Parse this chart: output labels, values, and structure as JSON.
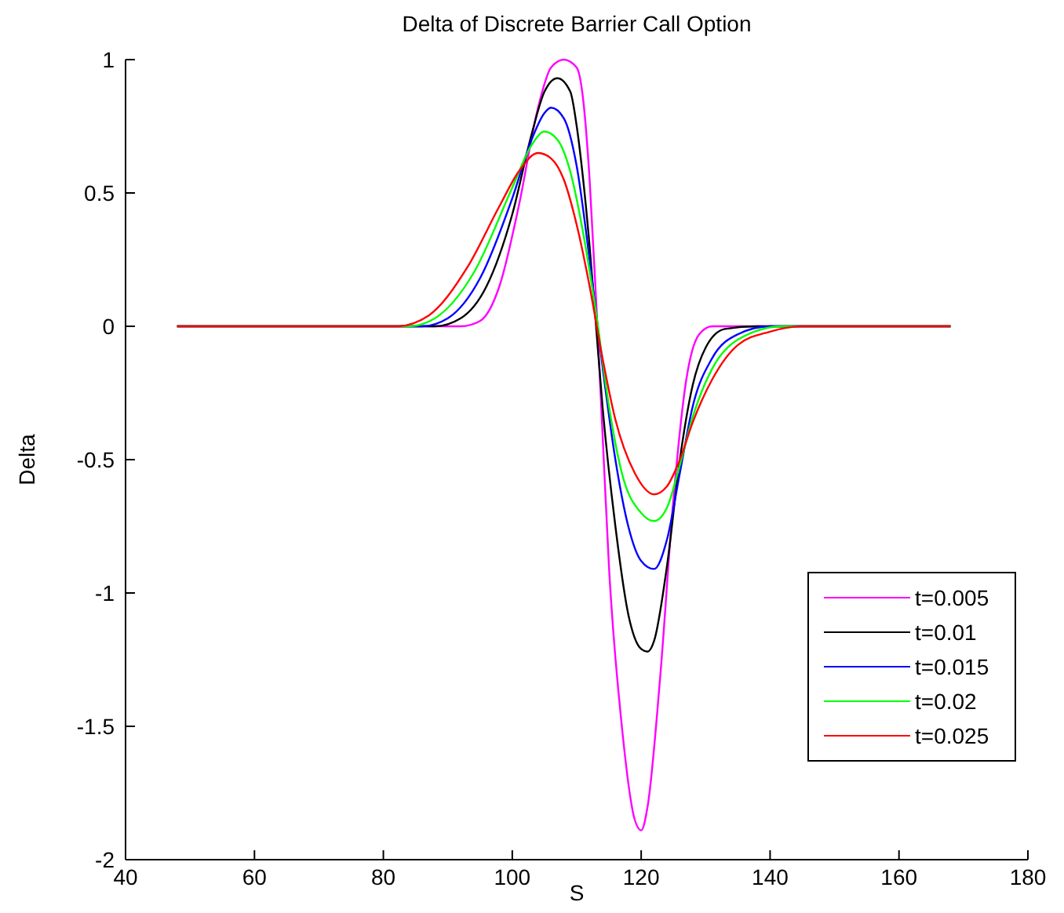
{
  "chart_data": {
    "type": "line",
    "title": "Delta of Discrete Barrier Call Option",
    "xlabel": "S",
    "ylabel": "Delta",
    "xlim": [
      40,
      180
    ],
    "xticks": [
      40,
      60,
      80,
      100,
      120,
      140,
      160,
      180
    ],
    "ylim": [
      -2,
      1
    ],
    "yticks": [
      -2,
      -1.5,
      -1,
      -0.5,
      0,
      0.5,
      1
    ],
    "legend": "bottom right",
    "grid": false,
    "series": [
      {
        "name": "t=0.005",
        "color": "#ff00ff",
        "x": [
          48,
          92,
          95,
          98,
          101,
          104,
          106,
          108,
          110,
          111,
          112,
          113,
          114,
          115,
          117,
          119,
          120,
          121,
          123,
          125,
          127,
          129,
          131,
          168
        ],
        "values": [
          0,
          0,
          0.02,
          0.15,
          0.45,
          0.82,
          0.97,
          1.0,
          0.97,
          0.85,
          0.55,
          0.1,
          -0.4,
          -0.9,
          -1.5,
          -1.85,
          -1.89,
          -1.8,
          -1.3,
          -0.65,
          -0.2,
          -0.03,
          0,
          0
        ]
      },
      {
        "name": "t=0.01",
        "color": "#000000",
        "x": [
          48,
          88,
          92,
          96,
          100,
          103,
          105,
          107,
          109,
          110,
          111,
          112,
          113,
          114,
          116,
          118,
          120,
          121,
          122,
          124,
          126,
          128,
          130,
          133,
          138,
          168
        ],
        "values": [
          0,
          0,
          0.03,
          0.15,
          0.42,
          0.72,
          0.88,
          0.93,
          0.88,
          0.75,
          0.55,
          0.3,
          0,
          -0.3,
          -0.75,
          -1.08,
          -1.21,
          -1.22,
          -1.18,
          -0.9,
          -0.5,
          -0.22,
          -0.08,
          -0.01,
          0,
          0
        ]
      },
      {
        "name": "t=0.015",
        "color": "#0000ff",
        "x": [
          48,
          86,
          90,
          95,
          100,
          103,
          105,
          106,
          108,
          110,
          112,
          114,
          116,
          118,
          120,
          122,
          124,
          126,
          128,
          131,
          135,
          140,
          168
        ],
        "values": [
          0,
          0,
          0.03,
          0.18,
          0.48,
          0.7,
          0.8,
          0.82,
          0.78,
          0.6,
          0.25,
          -0.15,
          -0.5,
          -0.75,
          -0.88,
          -0.91,
          -0.8,
          -0.55,
          -0.3,
          -0.12,
          -0.03,
          0,
          0
        ]
      },
      {
        "name": "t=0.02",
        "color": "#00ff00",
        "x": [
          48,
          84,
          88,
          94,
          100,
          103,
          105,
          107,
          109,
          111,
          113,
          115,
          117,
          120,
          122,
          124,
          126,
          128,
          131,
          135,
          142,
          168
        ],
        "values": [
          0,
          0,
          0.03,
          0.2,
          0.52,
          0.68,
          0.73,
          0.7,
          0.58,
          0.35,
          0.05,
          -0.3,
          -0.55,
          -0.7,
          -0.73,
          -0.68,
          -0.52,
          -0.34,
          -0.16,
          -0.05,
          0,
          0
        ]
      },
      {
        "name": "t=0.025",
        "color": "#ff0000",
        "x": [
          48,
          82,
          87,
          93,
          98,
          101,
          104,
          106,
          108,
          110,
          112,
          114,
          116,
          119,
          122,
          124,
          126,
          128,
          131,
          135,
          140,
          145,
          168
        ],
        "values": [
          0,
          0,
          0.04,
          0.22,
          0.45,
          0.58,
          0.65,
          0.63,
          0.55,
          0.38,
          0.15,
          -0.12,
          -0.35,
          -0.55,
          -0.63,
          -0.6,
          -0.5,
          -0.36,
          -0.2,
          -0.07,
          -0.02,
          0,
          0
        ]
      }
    ]
  }
}
